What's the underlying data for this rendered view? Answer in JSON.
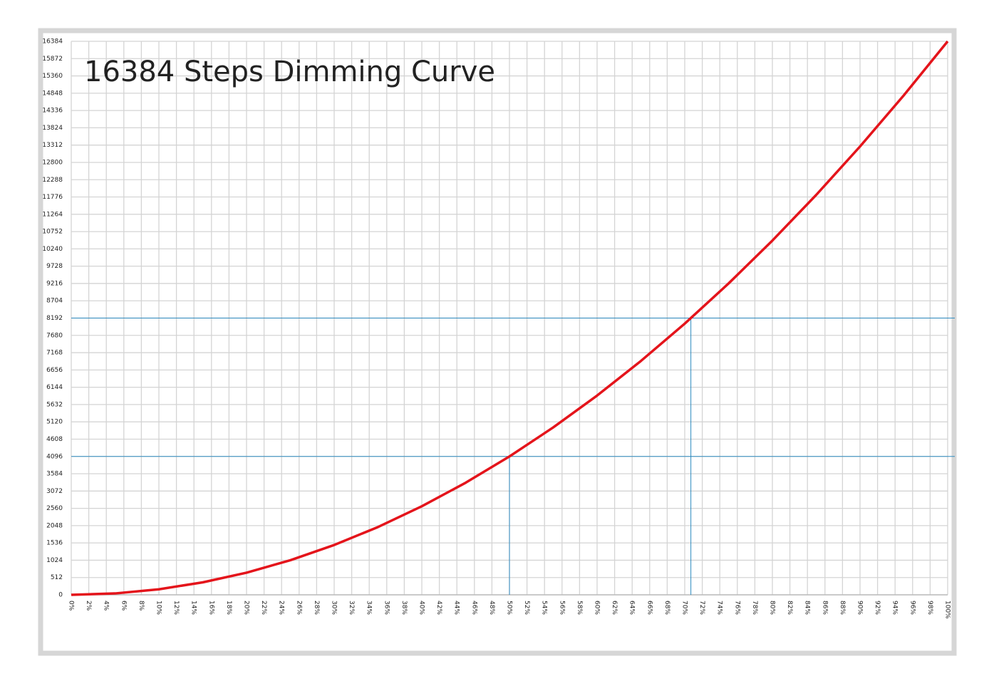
{
  "chart_data": {
    "type": "line",
    "title": "16384 Steps Dimming Curve",
    "x": [
      0,
      5,
      10,
      15,
      20,
      25,
      30,
      35,
      40,
      45,
      50,
      55,
      60,
      65,
      70,
      75,
      80,
      85,
      90,
      95,
      100
    ],
    "series": [
      {
        "color": "#e4141b",
        "values": [
          0,
          41,
          164,
          369,
          655,
          1024,
          1475,
          2007,
          2621,
          3318,
          4096,
          4956,
          5898,
          6922,
          8028,
          9216,
          10486,
          11837,
          13271,
          14787,
          16384
        ]
      }
    ],
    "xlim": [
      0,
      100
    ],
    "ylim": [
      0,
      16384
    ],
    "yticks": [
      0,
      512,
      1024,
      1536,
      2048,
      2560,
      3072,
      3584,
      4096,
      4608,
      5120,
      5632,
      6144,
      6656,
      7168,
      7680,
      8192,
      8704,
      9216,
      9728,
      10240,
      10752,
      11264,
      11776,
      12288,
      12800,
      13312,
      13824,
      14336,
      14848,
      15360,
      15872,
      16384
    ],
    "xticks": [
      {
        "value": 0,
        "label": "0%"
      },
      {
        "value": 2,
        "label": "2%"
      },
      {
        "value": 4,
        "label": "4%"
      },
      {
        "value": 6,
        "label": "6%"
      },
      {
        "value": 8,
        "label": "8%"
      },
      {
        "value": 10,
        "label": "10%"
      },
      {
        "value": 12,
        "label": "12%"
      },
      {
        "value": 14,
        "label": "14%"
      },
      {
        "value": 16,
        "label": "16%"
      },
      {
        "value": 18,
        "label": "18%"
      },
      {
        "value": 20,
        "label": "20%"
      },
      {
        "value": 22,
        "label": "22%"
      },
      {
        "value": 24,
        "label": "24%"
      },
      {
        "value": 26,
        "label": "26%"
      },
      {
        "value": 28,
        "label": "28%"
      },
      {
        "value": 30,
        "label": "30%"
      },
      {
        "value": 32,
        "label": "32%"
      },
      {
        "value": 34,
        "label": "34%"
      },
      {
        "value": 36,
        "label": "36%"
      },
      {
        "value": 38,
        "label": "38%"
      },
      {
        "value": 40,
        "label": "40%"
      },
      {
        "value": 42,
        "label": "42%"
      },
      {
        "value": 44,
        "label": "44%"
      },
      {
        "value": 46,
        "label": "46%"
      },
      {
        "value": 48,
        "label": "48%"
      },
      {
        "value": 50,
        "label": "50%"
      },
      {
        "value": 52,
        "label": "52%"
      },
      {
        "value": 54,
        "label": "54%"
      },
      {
        "value": 56,
        "label": "56%"
      },
      {
        "value": 58,
        "label": "58%"
      },
      {
        "value": 60,
        "label": "60%"
      },
      {
        "value": 62,
        "label": "62%"
      },
      {
        "value": 64,
        "label": "64%"
      },
      {
        "value": 66,
        "label": "66%"
      },
      {
        "value": 68,
        "label": "68%"
      },
      {
        "value": 70,
        "label": "70%"
      },
      {
        "value": 72,
        "label": "72%"
      },
      {
        "value": 74,
        "label": "74%"
      },
      {
        "value": 76,
        "label": "76%"
      },
      {
        "value": 78,
        "label": "78%"
      },
      {
        "value": 80,
        "label": "80%"
      },
      {
        "value": 82,
        "label": "82%"
      },
      {
        "value": 84,
        "label": "84%"
      },
      {
        "value": 86,
        "label": "86%"
      },
      {
        "value": 88,
        "label": "88%"
      },
      {
        "value": 90,
        "label": "90%"
      },
      {
        "value": 92,
        "label": "92%"
      },
      {
        "value": 94,
        "label": "94%"
      },
      {
        "value": 96,
        "label": "96%"
      },
      {
        "value": 98,
        "label": "98%"
      },
      {
        "value": 100,
        "label": "100%"
      }
    ],
    "grid": true,
    "reference_x": [
      50,
      70.7
    ],
    "reference_y": [
      4096,
      8192
    ],
    "reference_color": "#2e8bc0"
  }
}
